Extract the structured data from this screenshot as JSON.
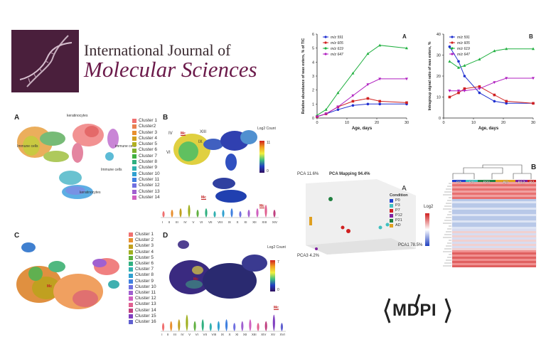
{
  "journal": {
    "name_line1": "International Journal of",
    "name_line2": "Molecular Sciences",
    "logo_icon": "dna-helix-icon",
    "publisher": "MDPI",
    "brand_color": "#4a1f3c",
    "accent_color": "#6b1a4a"
  },
  "umap_panels": {
    "A": {
      "label": "A",
      "annotations": [
        "keratinocytes",
        "Immune cells",
        "immune cells",
        "Immune cells",
        "keratinocytes"
      ],
      "legend": [
        "Cluster 1",
        "Cluster2",
        "Cluster 3",
        "Cluster 4",
        "Cluster 5",
        "Cluster 6",
        "Cluster 7",
        "Cluster 8",
        "Cluster 9",
        "Cluster 10",
        "Cluster 11",
        "Cluster 12",
        "Cluster 13",
        "Cluster 14"
      ]
    },
    "B": {
      "label": "B",
      "roman": [
        "IV",
        "XIII",
        "IX",
        "VI"
      ],
      "mc": "Mc",
      "scale_title": "Log2 Count",
      "scale_max": "11",
      "scale_min": "0",
      "violin_ticks": [
        "I",
        "II",
        "III",
        "IV",
        "V",
        "VI",
        "VII",
        "VIII",
        "IX",
        "X",
        "XI",
        "XII",
        "XIII",
        "XIV"
      ]
    },
    "C": {
      "label": "C",
      "mc": "Mc",
      "legend": [
        "Cluster 1",
        "Cluster 2",
        "Cluster 3",
        "Cluster 4",
        "Cluster 5",
        "Cluster 6",
        "Cluster 7",
        "Cluster 8",
        "Cluster 9",
        "Cluster 10",
        "Cluster 11",
        "Cluster 12",
        "Cluster 13",
        "Cluster 14",
        "Cluster 15",
        "Cluster 16"
      ]
    },
    "D": {
      "label": "D",
      "mc": "Mc",
      "scale_title": "Log2 Count",
      "scale_max": "7",
      "scale_min": "0",
      "violin_ticks": [
        "I",
        "II",
        "III",
        "IV",
        "V",
        "VI",
        "VII",
        "VIII",
        "IX",
        "X",
        "XI",
        "XII",
        "XIII",
        "XIV",
        "XV",
        "XVI"
      ]
    }
  },
  "pca": {
    "panel_label": "A",
    "title": "PCA Mapping 94.4%",
    "pca1": "PCA1 78.5%",
    "pca2": "PCA 11.6%",
    "pca3": "PCA3 4.2%",
    "legend_title": "Condition",
    "conditions": [
      {
        "name": "P0",
        "color": "#2040d0"
      },
      {
        "name": "P3",
        "color": "#40c0c0"
      },
      {
        "name": "P7",
        "color": "#d02020"
      },
      {
        "name": "P12",
        "color": "#8020a0"
      },
      {
        "name": "P21",
        "color": "#208040"
      },
      {
        "name": "AD",
        "color": "#e0a020"
      }
    ]
  },
  "heatmap": {
    "panel_label": "B",
    "scale_title": "Log2",
    "groups": [
      "P3",
      "P0",
      "P21",
      "AD",
      "P12",
      "P7"
    ],
    "group_colors": [
      "#2040d0",
      "#40c0c0",
      "#208040",
      "#e0a020",
      "#8020a0",
      "#d02020"
    ]
  },
  "chart_data": [
    {
      "type": "scatter",
      "panel": "A",
      "title": "",
      "xlabel": "Age, days",
      "ylabel": "Relative abundance of wax esters, % of TIC",
      "xlim": [
        0,
        30
      ],
      "ylim": [
        0,
        6
      ],
      "xticks": [
        "0",
        "10",
        "20",
        "30"
      ],
      "yticks": [
        "0",
        "1",
        "2",
        "3",
        "4",
        "5",
        "6"
      ],
      "series": [
        {
          "name": "m/z 591",
          "color": "#2030d0",
          "x": [
            0,
            3,
            7,
            12,
            17,
            21,
            30
          ],
          "y": [
            0.1,
            0.3,
            0.6,
            0.9,
            1.0,
            1.0,
            1.0
          ]
        },
        {
          "name": "m/z 605",
          "color": "#d02020",
          "x": [
            0,
            3,
            7,
            12,
            17,
            21,
            30
          ],
          "y": [
            0.1,
            0.3,
            0.8,
            1.2,
            1.4,
            1.2,
            1.1
          ]
        },
        {
          "name": "m/z 619",
          "color": "#20b040",
          "x": [
            0,
            3,
            7,
            12,
            17,
            21,
            30
          ],
          "y": [
            0.2,
            0.6,
            1.8,
            3.2,
            4.6,
            5.2,
            5.0
          ]
        },
        {
          "name": "m/z 647",
          "color": "#b020c0",
          "x": [
            0,
            3,
            7,
            12,
            17,
            21,
            30
          ],
          "y": [
            0.1,
            0.3,
            0.8,
            1.6,
            2.4,
            2.8,
            2.8
          ]
        }
      ]
    },
    {
      "type": "scatter",
      "panel": "B",
      "title": "",
      "xlabel": "Age, days",
      "ylabel": "Intragroup signal ratio of wax esters, %",
      "xlim": [
        0,
        30
      ],
      "ylim": [
        0,
        40
      ],
      "xticks": [
        "0",
        "10",
        "20",
        "30"
      ],
      "yticks": [
        "0",
        "10",
        "20",
        "30",
        "40"
      ],
      "series": [
        {
          "name": "m/z 591",
          "color": "#2030d0",
          "x": [
            2,
            5,
            7,
            12,
            17,
            21,
            30
          ],
          "y": [
            34,
            27,
            20,
            12,
            8,
            7,
            7
          ]
        },
        {
          "name": "m/z 605",
          "color": "#d02020",
          "x": [
            2,
            5,
            7,
            12,
            17,
            21,
            30
          ],
          "y": [
            10,
            12,
            14,
            15,
            11,
            8,
            7
          ]
        },
        {
          "name": "m/z 619",
          "color": "#20b040",
          "x": [
            2,
            5,
            7,
            12,
            17,
            21,
            30
          ],
          "y": [
            27,
            24,
            25,
            28,
            32,
            33,
            33
          ]
        },
        {
          "name": "m/z 647",
          "color": "#b020c0",
          "x": [
            2,
            5,
            7,
            12,
            17,
            21,
            30
          ],
          "y": [
            13,
            13,
            13,
            14,
            17,
            19,
            19
          ]
        }
      ]
    }
  ]
}
